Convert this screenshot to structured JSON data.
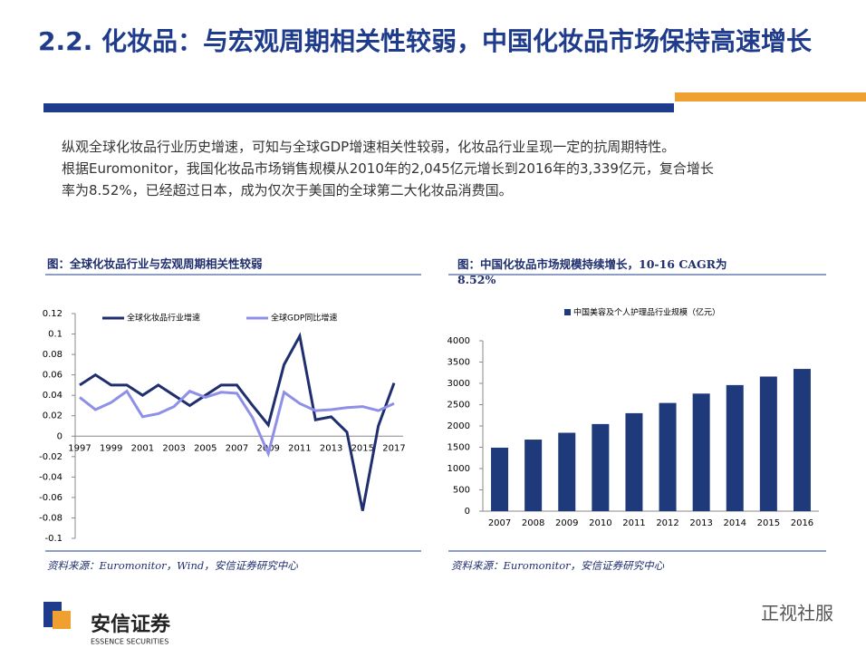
{
  "header": {
    "title": "2.2. 化妆品：与宏观周期相关性较弱，中国化妆品市场保持高速增长"
  },
  "body": {
    "lines": [
      "纵观全球化妆品行业历史增速，可知与全球GDP增速相关性较弱，化妆品行业呈现一定的抗周期特性。",
      "根据Euromonitor，我国化妆品市场销售规模从2010年的2,045亿元增长到2016年的3,339亿元，复合增长",
      "率为8.52%，已经超过日本，成为仅次于美国的全球第二大化妆品消费国。"
    ]
  },
  "chart_data": [
    {
      "type": "line",
      "title": "图：全球化妆品行业与宏观周期相关性较弱",
      "source": "资料来源：Euromonitor，Wind，安信证券研究中心",
      "categories": [
        "1997",
        null,
        "1999",
        null,
        "2001",
        null,
        "2003",
        null,
        "2005",
        null,
        "2007",
        null,
        "2009",
        null,
        "2011",
        null,
        "2013",
        null,
        "2015",
        null,
        "2017"
      ],
      "series": [
        {
          "name": "全球化妆品行业增速",
          "color": "#1f2e6e",
          "values": [
            0.05,
            0.06,
            0.05,
            0.05,
            0.04,
            0.05,
            0.04,
            0.03,
            0.04,
            0.05,
            0.05,
            0.03,
            0.011,
            0.07,
            0.098,
            0.016,
            0.019,
            0.004,
            -0.073,
            0.01,
            0.052
          ]
        },
        {
          "name": "全球GDP同比增速",
          "color": "#8e8fe6",
          "values": [
            0.038,
            0.026,
            0.033,
            0.044,
            0.019,
            0.022,
            0.029,
            0.044,
            0.038,
            0.043,
            0.042,
            0.018,
            -0.017,
            0.043,
            0.032,
            0.025,
            0.026,
            0.028,
            0.029,
            0.025,
            0.032
          ]
        }
      ],
      "ylim": [
        -0.1,
        0.12
      ],
      "yticks": [
        -0.1,
        -0.08,
        -0.06,
        -0.04,
        -0.02,
        0,
        0.02,
        0.04,
        0.06,
        0.08,
        0.1,
        0.12
      ]
    },
    {
      "type": "bar",
      "title": "图：中国化妆品市场规模持续增长，10-16 CAGR为8.52%",
      "source": "资料来源：Euromonitor，安信证券研究中心",
      "categories": [
        "2007",
        "2008",
        "2009",
        "2010",
        "2011",
        "2012",
        "2013",
        "2014",
        "2015",
        "2016"
      ],
      "series": [
        {
          "name": "中国美容及个人护理品行业规模（亿元）",
          "color": "#1f3a7a",
          "values": [
            1490,
            1680,
            1840,
            2045,
            2300,
            2540,
            2760,
            2960,
            3160,
            3339
          ]
        }
      ],
      "ylim": [
        0,
        4000
      ],
      "yticks": [
        0,
        500,
        1000,
        1500,
        2000,
        2500,
        3000,
        3500,
        4000
      ]
    }
  ],
  "footer": {
    "logo": "安信证券",
    "logo_en": "ESSENCE SECURITIES",
    "watermark": "正视社服"
  }
}
